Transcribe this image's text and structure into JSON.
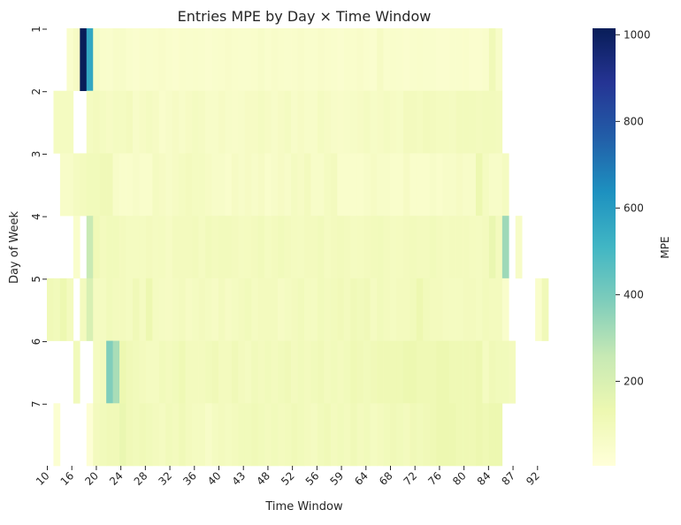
{
  "chart_data": {
    "type": "heatmap",
    "title": "Entries MPE by Day × Time Window",
    "xlabel": "Time Window",
    "ylabel": "Day of Week",
    "colorbar_label": "MPE",
    "colormap": "YlGnBu",
    "colorbar_ticks": [
      "200",
      "400",
      "600",
      "800",
      "1000"
    ],
    "colorbar_range": [
      5,
      1015
    ],
    "x_tick_labels": [
      "10",
      "16",
      "20",
      "24",
      "28",
      "32",
      "36",
      "40",
      "43",
      "48",
      "52",
      "56",
      "59",
      "64",
      "68",
      "72",
      "76",
      "80",
      "84",
      "87",
      "92"
    ],
    "y_tick_labels": [
      "1",
      "2",
      "3",
      "4",
      "5",
      "6",
      "7"
    ],
    "days": [
      "1",
      "2",
      "3",
      "4",
      "5",
      "6",
      "7"
    ],
    "rows": [
      [
        null,
        null,
        null,
        45,
        70,
        1015,
        560,
        65,
        50,
        45,
        60,
        60,
        45,
        40,
        50,
        45,
        50,
        55,
        45,
        40,
        50,
        45,
        50,
        45,
        40,
        45,
        50,
        55,
        50,
        45,
        45,
        50,
        60,
        45,
        55,
        50,
        45,
        50,
        55,
        45,
        45,
        55,
        50,
        45,
        40,
        50,
        50,
        55,
        45,
        40,
        70,
        45,
        50,
        45,
        40,
        45,
        50,
        45,
        45,
        40,
        40,
        45,
        45,
        50,
        40,
        40,
        50,
        110,
        60,
        null,
        null,
        null,
        null,
        null,
        null,
        null,
        null,
        null
      ],
      [
        null,
        80,
        80,
        80,
        null,
        null,
        80,
        90,
        80,
        70,
        80,
        80,
        90,
        60,
        70,
        80,
        70,
        50,
        60,
        70,
        60,
        70,
        80,
        75,
        60,
        60,
        70,
        60,
        55,
        60,
        70,
        70,
        80,
        70,
        60,
        70,
        80,
        60,
        70,
        60,
        60,
        80,
        70,
        60,
        55,
        60,
        65,
        70,
        80,
        65,
        70,
        80,
        70,
        65,
        90,
        90,
        85,
        95,
        90,
        85,
        85,
        80,
        95,
        95,
        95,
        90,
        95,
        95,
        90,
        null,
        null,
        null,
        null,
        null,
        null,
        null,
        null,
        null
      ],
      [
        null,
        null,
        60,
        60,
        80,
        90,
        100,
        100,
        110,
        110,
        60,
        50,
        50,
        60,
        50,
        50,
        80,
        70,
        60,
        70,
        80,
        90,
        80,
        80,
        70,
        60,
        60,
        50,
        70,
        60,
        70,
        60,
        70,
        50,
        60,
        70,
        60,
        80,
        70,
        90,
        60,
        60,
        80,
        90,
        50,
        50,
        50,
        50,
        60,
        70,
        60,
        60,
        50,
        50,
        70,
        50,
        50,
        50,
        60,
        50,
        60,
        60,
        70,
        60,
        60,
        130,
        80,
        60,
        60,
        80,
        null,
        null,
        null,
        null,
        null,
        null,
        null,
        null
      ],
      [
        null,
        null,
        null,
        null,
        50,
        null,
        250,
        110,
        90,
        100,
        100,
        90,
        80,
        80,
        80,
        90,
        80,
        85,
        70,
        90,
        90,
        90,
        95,
        80,
        100,
        90,
        95,
        95,
        90,
        80,
        85,
        90,
        100,
        80,
        90,
        100,
        90,
        85,
        80,
        90,
        90,
        100,
        80,
        90,
        95,
        90,
        80,
        85,
        90,
        95,
        100,
        90,
        80,
        85,
        90,
        95,
        90,
        90,
        100,
        90,
        85,
        90,
        90,
        90,
        85,
        80,
        90,
        140,
        90,
        330,
        null,
        60,
        null,
        null,
        null,
        null,
        null,
        null
      ],
      [
        110,
        100,
        130,
        90,
        null,
        90,
        200,
        80,
        80,
        100,
        90,
        90,
        80,
        110,
        80,
        130,
        80,
        75,
        70,
        80,
        90,
        70,
        80,
        90,
        80,
        70,
        90,
        70,
        80,
        90,
        100,
        80,
        90,
        90,
        90,
        70,
        80,
        90,
        100,
        80,
        80,
        100,
        90,
        95,
        105,
        90,
        110,
        100,
        110,
        80,
        100,
        90,
        80,
        90,
        90,
        100,
        130,
        100,
        90,
        90,
        80,
        80,
        80,
        90,
        90,
        80,
        95,
        90,
        90,
        50,
        null,
        null,
        null,
        null,
        50,
        110,
        null,
        null
      ],
      [
        null,
        null,
        null,
        null,
        100,
        null,
        null,
        80,
        90,
        380,
        310,
        130,
        110,
        100,
        90,
        80,
        80,
        100,
        90,
        100,
        120,
        90,
        90,
        90,
        100,
        110,
        90,
        90,
        110,
        90,
        80,
        100,
        90,
        100,
        90,
        100,
        110,
        90,
        100,
        90,
        100,
        110,
        90,
        100,
        90,
        100,
        120,
        110,
        100,
        110,
        120,
        120,
        120,
        120,
        130,
        130,
        120,
        120,
        120,
        130,
        130,
        120,
        120,
        120,
        120,
        130,
        80,
        110,
        100,
        100,
        90,
        null,
        null,
        null,
        null,
        null,
        null,
        null
      ],
      [
        null,
        30,
        null,
        null,
        null,
        null,
        20,
        90,
        100,
        110,
        110,
        140,
        110,
        100,
        110,
        100,
        90,
        80,
        100,
        90,
        110,
        90,
        80,
        80,
        60,
        80,
        90,
        80,
        90,
        100,
        100,
        110,
        100,
        90,
        100,
        90,
        95,
        110,
        100,
        90,
        80,
        100,
        110,
        90,
        100,
        90,
        110,
        90,
        100,
        80,
        90,
        100,
        110,
        100,
        90,
        110,
        100,
        110,
        120,
        130,
        130,
        130,
        120,
        120,
        120,
        130,
        120,
        130,
        130,
        null,
        null,
        null,
        null,
        null,
        null,
        null,
        null,
        null
      ]
    ]
  }
}
